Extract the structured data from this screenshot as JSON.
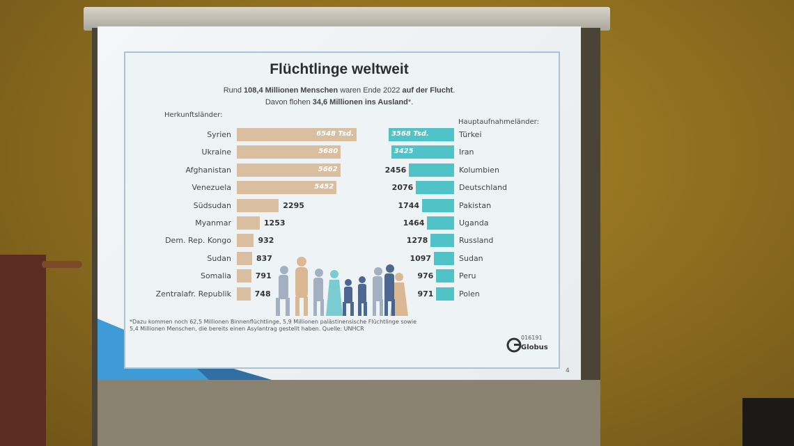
{
  "slide": {
    "title": "Flüchtlinge weltweit",
    "subtitle_line1": {
      "pre": "Rund ",
      "bold1": "108,4 Millionen Menschen",
      "mid": " waren Ende 2022 ",
      "bold2": "auf der Flucht",
      "post": "."
    },
    "subtitle_line2": {
      "pre": "Davon flohen ",
      "bold": "34,6 Millionen ins Ausland",
      "post": "*."
    },
    "footnote": "*Dazu kommen noch 62,5 Millionen Binnenflüchtlinge, 5,9 Millionen palästinensische Flüchtlinge sowie 5,4 Millionen Menschen, die bereits einen Asylantrag gestellt haben. Quelle: UNHCR",
    "logo_number": "016191",
    "logo_name": "Globus",
    "page_number": "4"
  },
  "chart_data": [
    {
      "type": "bar",
      "orientation": "horizontal",
      "title": "Herkunftsländer:",
      "categories": [
        "Syrien",
        "Ukraine",
        "Afghanistan",
        "Venezuela",
        "Südsudan",
        "Myanmar",
        "Dem. Rep. Kongo",
        "Sudan",
        "Somalia",
        "Zentralafr. Republik"
      ],
      "values": [
        6548,
        5680,
        5662,
        5452,
        2295,
        1253,
        932,
        837,
        791,
        748
      ],
      "value_labels": [
        "6548 Tsd.",
        "5680",
        "5662",
        "5452",
        "2295",
        "1253",
        "932",
        "837",
        "791",
        "748"
      ],
      "xlim": [
        0,
        6548
      ],
      "color": "#d9bfa0"
    },
    {
      "type": "bar",
      "orientation": "horizontal",
      "title": "Hauptaufnahmeländer:",
      "categories": [
        "Türkei",
        "Iran",
        "Kolumbien",
        "Deutschland",
        "Pakistan",
        "Uganda",
        "Russland",
        "Sudan",
        "Peru",
        "Polen"
      ],
      "values": [
        3568,
        3425,
        2456,
        2076,
        1744,
        1464,
        1278,
        1097,
        976,
        971
      ],
      "value_labels": [
        "3568 Tsd.",
        "3425",
        "2456",
        "2076",
        "1744",
        "1464",
        "1278",
        "1097",
        "976",
        "971"
      ],
      "xlim": [
        0,
        3568
      ],
      "color": "#4fc3c8"
    }
  ]
}
